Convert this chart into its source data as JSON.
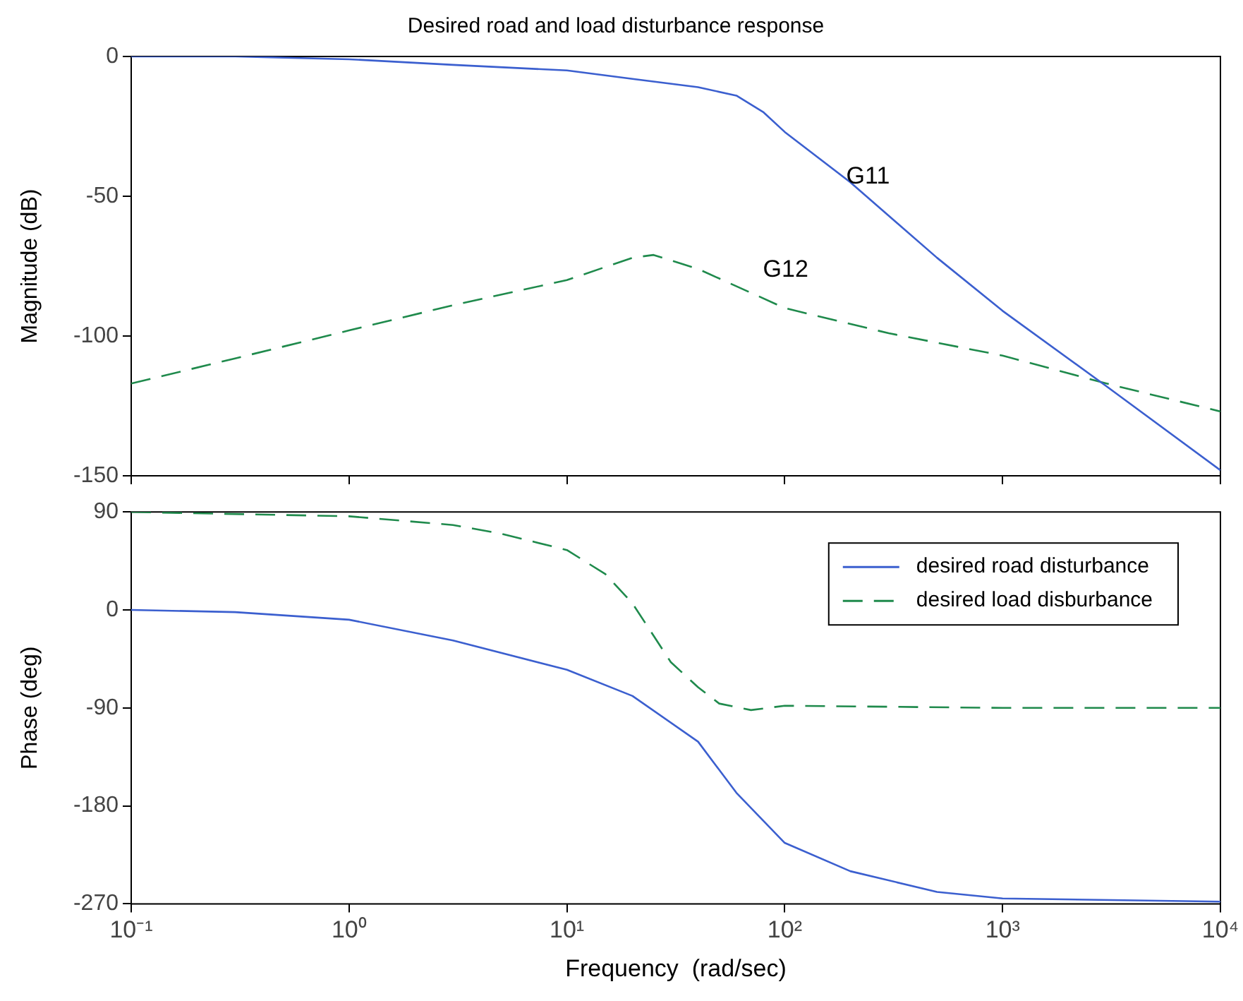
{
  "chart_data": [
    {
      "type": "line",
      "title": "Desired road and load disturbance response",
      "ylabel": "Magnitude (dB)",
      "log": "x",
      "xlim": [
        0.1,
        10000
      ],
      "ylim": [
        -150,
        0
      ],
      "xticks": [
        {
          "value": 0.1,
          "label": null
        },
        {
          "value": 1,
          "label": null
        },
        {
          "value": 10,
          "label": null
        },
        {
          "value": 100,
          "label": null
        },
        {
          "value": 1000,
          "label": null
        },
        {
          "value": 10000,
          "label": null
        }
      ],
      "yticks": [
        -150,
        -100,
        -50,
        0
      ],
      "tick_labels": "y",
      "grid": false,
      "series": [
        {
          "color": "#3b5fcf",
          "line_style": "solid",
          "x": [
            0.1,
            0.3,
            1,
            3,
            10,
            20,
            40,
            60,
            80,
            100,
            200,
            500,
            1000,
            3000,
            10000
          ],
          "values": [
            0,
            0,
            -1,
            -3,
            -5,
            -8,
            -11,
            -14,
            -20,
            -27,
            -45,
            -72,
            -91,
            -118,
            -148
          ]
        },
        {
          "color": "#1f8a4c",
          "line_style": "dashed",
          "x": [
            0.1,
            0.3,
            1,
            3,
            10,
            20,
            25,
            40,
            100,
            300,
            1000,
            3000,
            10000
          ],
          "values": [
            -117,
            -108,
            -98,
            -89,
            -80,
            -72,
            -71,
            -76,
            -90,
            -99,
            -107,
            -117,
            -127
          ]
        }
      ],
      "annotations": [
        {
          "text": "G11",
          "x": 170,
          "y": -43
        },
        "G12"
      ]
    },
    {
      "type": "line",
      "xlabel": "Frequency  (rad/sec)",
      "ylabel": "Phase (deg)",
      "log": "x",
      "xlim": [
        0.1,
        10000
      ],
      "ylim": [
        -270,
        90
      ],
      "xticks": [
        {
          "value": 0.1,
          "label": "10⁻¹"
        },
        {
          "value": 1,
          "label": "10⁰"
        },
        {
          "value": 10,
          "label": "10¹"
        },
        {
          "value": 100,
          "label": "10²"
        },
        {
          "value": 1000,
          "label": "10³"
        },
        {
          "value": 10000,
          "label": "10⁴"
        }
      ],
      "yticks": [
        -270,
        -180,
        -90,
        0,
        90
      ],
      "grid": false,
      "legend": "top right",
      "series": [
        {
          "name": "desired road disturbance",
          "color": "#3b5fcf",
          "line_style": "solid",
          "x": [
            0.1,
            0.3,
            1,
            3,
            10,
            20,
            40,
            60,
            100,
            200,
            500,
            1000,
            10000
          ],
          "values": [
            0,
            -2,
            -9,
            -28,
            -55,
            -79,
            -121,
            -168,
            -214,
            -240,
            -259,
            -265,
            -268
          ]
        },
        {
          "name": "desired load disburbance",
          "color": "#1f8a4c",
          "line_style": "dashed",
          "x": [
            0.1,
            1,
            3,
            5,
            10,
            15,
            20,
            30,
            40,
            50,
            70,
            100,
            1000,
            10000
          ],
          "values": [
            90,
            86,
            78,
            70,
            55,
            33,
            6,
            -48,
            -71,
            -86,
            -92,
            -88,
            -90,
            -90
          ]
        }
      ]
    }
  ]
}
